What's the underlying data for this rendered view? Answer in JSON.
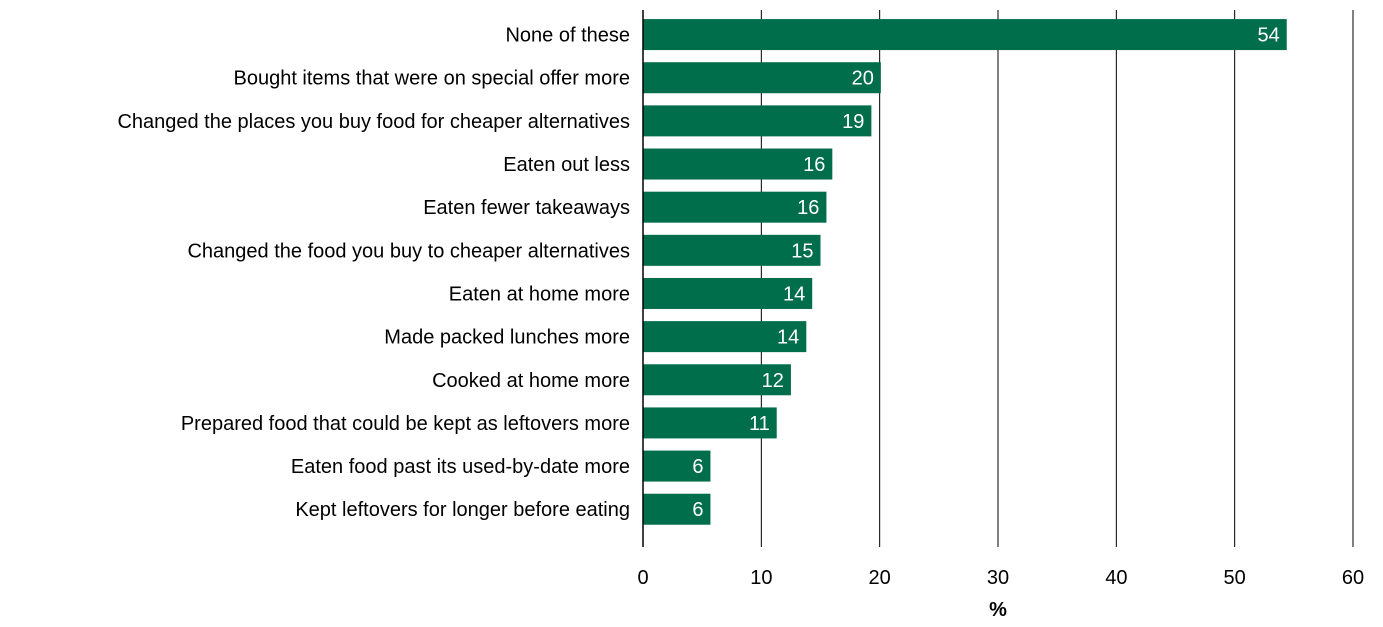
{
  "chart_data": {
    "type": "bar",
    "orientation": "horizontal",
    "title": "",
    "xlabel": "%",
    "ylabel": "",
    "xlim": [
      0,
      60
    ],
    "x_ticks": [
      0,
      10,
      20,
      30,
      40,
      50,
      60
    ],
    "grid": true,
    "legend": "none",
    "bar_color": "#006e4a",
    "label_color": "#ffffff",
    "categories": [
      "None of these",
      "Bought items that were on special offer more",
      "Changed the places you buy food for cheaper alternatives",
      "Eaten out less",
      "Eaten fewer takeaways",
      "Changed the food you buy to cheaper alternatives",
      "Eaten at home more",
      "Made packed lunches more",
      "Cooked at home more",
      "Prepared food that could be kept as leftovers more",
      "Eaten food past its used-by-date more",
      "Kept leftovers for longer before eating"
    ],
    "values": [
      54.4,
      20.1,
      19.3,
      16.0,
      15.5,
      15.0,
      14.3,
      13.8,
      12.5,
      11.3,
      5.7,
      5.7
    ],
    "data_labels": [
      "54",
      "20",
      "19",
      "16",
      "16",
      "15",
      "14",
      "14",
      "12",
      "11",
      "6",
      "6"
    ]
  }
}
